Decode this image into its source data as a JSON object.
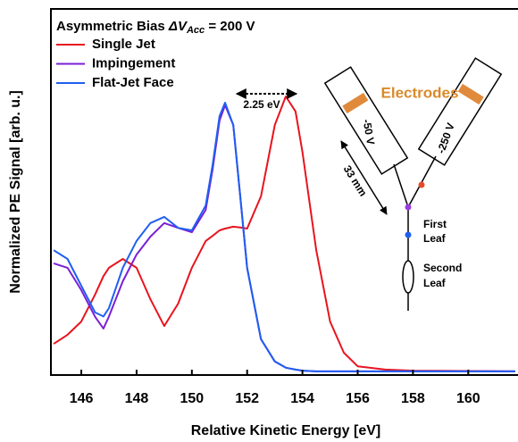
{
  "chart_data": {
    "type": "line",
    "legend_title": {
      "prefix": "Asymmetric Bias ",
      "symbol": "ΔV",
      "subscript": "Acc",
      "suffix": " = 200 V"
    },
    "xlabel": "Relative Kinetic Energy [eV]",
    "ylabel": "Normalized PE Signal [arb. u.]",
    "xlim": [
      144.9,
      161.8
    ],
    "xticks": [
      146,
      148,
      150,
      152,
      154,
      156,
      158,
      160
    ],
    "ylim": [
      0,
      1
    ],
    "x": [
      145,
      145.5,
      146,
      146.5,
      146.8,
      147,
      147.5,
      148,
      148.5,
      149,
      149.5,
      150,
      150.5,
      150.75,
      151,
      151.2,
      151.5,
      151.75,
      152,
      152.5,
      153,
      153.4,
      153.75,
      154,
      154.5,
      155,
      155.5,
      156,
      157,
      158,
      161.7
    ],
    "series": [
      {
        "name": "Single Jet",
        "color": "#e8141e",
        "values": [
          0.085,
          0.11,
          0.146,
          0.22,
          0.27,
          0.293,
          0.317,
          0.293,
          0.207,
          0.134,
          0.195,
          0.293,
          0.366,
          0.38,
          0.395,
          0.4,
          0.405,
          0.403,
          0.4,
          0.488,
          0.683,
          0.761,
          0.72,
          0.61,
          0.341,
          0.146,
          0.061,
          0.024,
          0.015,
          0.012,
          0.01
        ]
      },
      {
        "name": "Impingement",
        "color": "#7a1fd6",
        "values": [
          0.305,
          0.293,
          0.232,
          0.159,
          0.127,
          0.16,
          0.256,
          0.329,
          0.378,
          0.415,
          0.402,
          0.39,
          0.451,
          0.561,
          0.695,
          0.737,
          0.683,
          0.488,
          0.293,
          0.098,
          0.037,
          0.02,
          0.015,
          0.012,
          0.01,
          0.01,
          0.01,
          0.01,
          0.01,
          0.01,
          0.01
        ]
      },
      {
        "name": "Flat-Jet Face",
        "color": "#1f5ff0",
        "values": [
          0.341,
          0.317,
          0.244,
          0.171,
          0.16,
          0.183,
          0.293,
          0.366,
          0.415,
          0.432,
          0.402,
          0.395,
          0.463,
          0.573,
          0.707,
          0.744,
          0.683,
          0.488,
          0.293,
          0.098,
          0.037,
          0.02,
          0.015,
          0.012,
          0.01,
          0.01,
          0.01,
          0.01,
          0.01,
          0.01,
          0.01
        ]
      }
    ],
    "annotations": {
      "shift": "2.25 eV",
      "electrodes": "Electrodes",
      "left_voltage": "-50 V",
      "right_voltage": "-250 V",
      "distance": "33 mm",
      "first_leaf": [
        "First",
        "Leaf"
      ],
      "second_leaf": [
        "Second",
        "Leaf"
      ]
    }
  }
}
